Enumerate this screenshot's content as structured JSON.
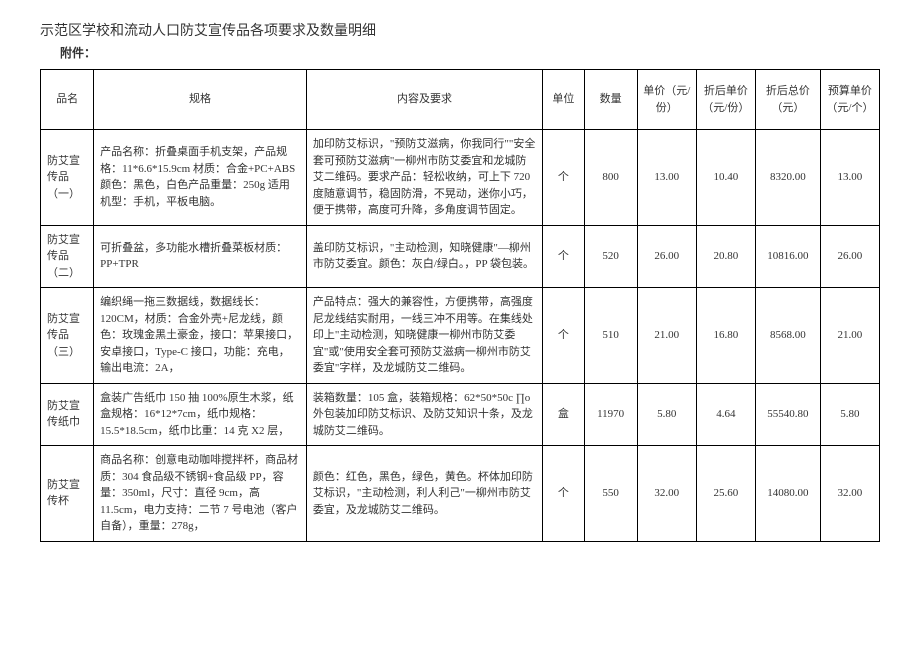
{
  "title": "示范区学校和流动人口防艾宣传品各项要求及数量明细",
  "subtitle": "附件：",
  "headers": {
    "name": "品名",
    "spec": "规格",
    "content": "内容及要求",
    "unit": "单位",
    "qty": "数量",
    "price": "单价（元/份）",
    "discPrice": "折后单价（元/份）",
    "total": "折后总价（元）",
    "budget": "预算单价（元/个）"
  },
  "rows": [
    {
      "name": "防艾宣传品（一）",
      "spec": "产品名称：折叠桌面手机支架，产品规格：11*6.6*15.9cm 材质：合金+PC+ABS 颜色：黑色，白色产品重量：250g 适用机型：手机，平板电脑。",
      "content": "加印防艾标识，\"预防艾滋病，你我同行\"\"安全套可预防艾滋病\"一柳州市防艾委宜和龙城防艾二维码。要求产品：轻松收纳，可上下 720 度随意调节，稳固防滑，不晃动，迷你小巧，便于携带，高度可升降，多角度调节固定。",
      "unit": "个",
      "qty": "800",
      "price": "13.00",
      "discPrice": "10.40",
      "total": "8320.00",
      "budget": "13.00"
    },
    {
      "name": "防艾宣传品（二）",
      "spec": "可折叠盆，多功能水槽折叠菜板材质：PP+TPR",
      "content": "盖印防艾标识，\"主动检测，知晓健康\"—柳州市防艾委宜。颜色：灰白/绿白。，PP 袋包装。",
      "unit": "个",
      "qty": "520",
      "price": "26.00",
      "discPrice": "20.80",
      "total": "10816.00",
      "budget": "26.00"
    },
    {
      "name": "防艾宣传品（三）",
      "spec": "编织绳一拖三数据线，数据线长：120CM，材质：合金外壳+尼龙线，颜色：玫瑰金黑土豪金，接口：苹果接口，安卓接口，Type-C 接口，功能：充电，输出电流：2A，",
      "content": "产品特点：强大的兼容性，方便携带，高强度尼龙线结实耐用，一线三冲不用等。在集线处印上\"主动检测，知晓健康一柳州市防艾委宜\"或\"使用安全套可预防艾滋病一柳州市防艾委宜\"字样，及龙城防艾二维码。",
      "unit": "个",
      "qty": "510",
      "price": "21.00",
      "discPrice": "16.80",
      "total": "8568.00",
      "budget": "21.00"
    },
    {
      "name": "防艾宣传纸巾",
      "spec": "盒装广告纸巾 150 抽 100%原生木浆，纸盒规格：16*12*7cm，纸巾规格：15.5*18.5cm，纸巾比重：14 克 X2 层，",
      "content": "装箱数量：105 盒，装箱规格：62*50*50c ∏o 外包装加印防艾标识、及防艾知识十条，及龙城防艾二维码。",
      "unit": "盒",
      "qty": "11970",
      "price": "5.80",
      "discPrice": "4.64",
      "total": "55540.80",
      "budget": "5.80"
    },
    {
      "name": "防艾宣传杯",
      "spec": "商品名称：创意电动咖啡搅拌杯，商品材质：304 食品级不锈钢+食品级 PP，容量：350ml，尺寸：直径 9cm，高 11.5cm，电力支持：二节 7 号电池（客户自备），重量：278g，",
      "content": "颜色：红色，黑色，绿色，黄色。杯体加印防艾标识，\"主动检测，利人利己\"一柳州市防艾委宜，及龙城防艾二维码。",
      "unit": "个",
      "qty": "550",
      "price": "32.00",
      "discPrice": "25.60",
      "total": "14080.00",
      "budget": "32.00"
    }
  ]
}
